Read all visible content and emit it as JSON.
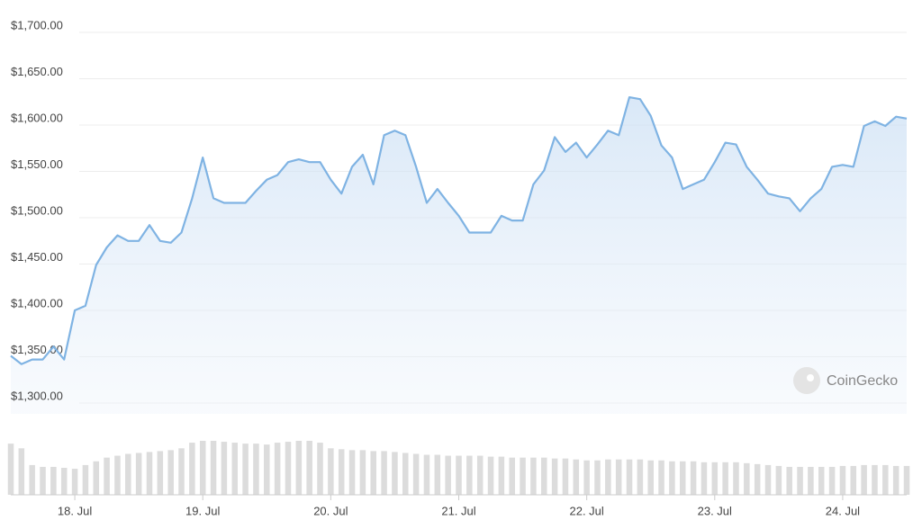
{
  "chart_data": {
    "type": "area",
    "color": "#7fb3e3",
    "watermark": "CoinGecko",
    "ylim": [
      1300,
      1700
    ],
    "yticks": [
      {
        "value": 1300,
        "label": "$1,300.00"
      },
      {
        "value": 1350,
        "label": "$1,350.00"
      },
      {
        "value": 1400,
        "label": "$1,400.00"
      },
      {
        "value": 1450,
        "label": "$1,450.00"
      },
      {
        "value": 1500,
        "label": "$1,500.00"
      },
      {
        "value": 1550,
        "label": "$1,550.00"
      },
      {
        "value": 1600,
        "label": "$1,600.00"
      },
      {
        "value": 1650,
        "label": "$1,650.00"
      },
      {
        "value": 1700,
        "label": "$1,700.00"
      }
    ],
    "grid": true,
    "categories": [
      null,
      null,
      null,
      null,
      null,
      null,
      "18. Jul",
      null,
      null,
      null,
      null,
      null,
      null,
      null,
      null,
      null,
      null,
      null,
      "19. Jul",
      null,
      null,
      null,
      null,
      null,
      null,
      null,
      null,
      null,
      null,
      null,
      "20. Jul",
      null,
      null,
      null,
      null,
      null,
      null,
      null,
      null,
      null,
      null,
      null,
      "21. Jul",
      null,
      null,
      null,
      null,
      null,
      null,
      null,
      null,
      null,
      null,
      null,
      "22. Jul",
      null,
      null,
      null,
      null,
      null,
      null,
      null,
      null,
      null,
      null,
      null,
      "23. Jul",
      null,
      null,
      null,
      null,
      null,
      null,
      null,
      null,
      null,
      null,
      null,
      "24. Jul",
      null,
      null,
      null,
      null,
      null,
      null
    ],
    "values": [
      1351,
      1342,
      1347,
      1347,
      1361,
      1347,
      1400,
      1405,
      1449,
      1468,
      1481,
      1475,
      1475,
      1492,
      1475,
      1473,
      1484,
      1521,
      1565,
      1521,
      1516,
      1516,
      1516,
      1529,
      1541,
      1546,
      1560,
      1563,
      1560,
      1560,
      1541,
      1526,
      1555,
      1568,
      1536,
      1589,
      1594,
      1589,
      1555,
      1516,
      1531,
      1516,
      1502,
      1484,
      1484,
      1484,
      1502,
      1497,
      1497,
      1536,
      1551,
      1587,
      1571,
      1581,
      1565,
      1579,
      1594,
      1589,
      1630,
      1628,
      1610,
      1578,
      1565,
      1531,
      1536,
      1541,
      1560,
      1581,
      1579,
      1555,
      1541,
      1526,
      1523,
      1521,
      1507,
      1521,
      1531,
      1555,
      1557,
      1555,
      1599,
      1604,
      1599,
      1609,
      1607
    ],
    "volume": [
      55,
      50,
      32,
      30,
      30,
      29,
      28,
      32,
      36,
      40,
      42,
      44,
      45,
      46,
      47,
      48,
      50,
      56,
      58,
      58,
      57,
      56,
      55,
      55,
      54,
      56,
      57,
      58,
      58,
      56,
      50,
      49,
      48,
      48,
      47,
      47,
      46,
      45,
      44,
      43,
      43,
      42,
      42,
      42,
      42,
      41,
      41,
      40,
      40,
      40,
      40,
      39,
      39,
      38,
      37,
      37,
      38,
      38,
      38,
      38,
      37,
      37,
      36,
      36,
      36,
      35,
      35,
      35,
      35,
      34,
      33,
      32,
      31,
      30,
      30,
      30,
      30,
      30,
      31,
      31,
      32,
      32,
      32,
      31,
      31
    ]
  }
}
